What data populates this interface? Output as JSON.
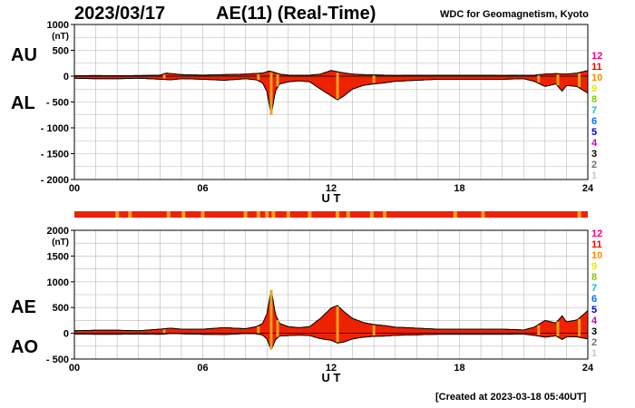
{
  "header": {
    "date": "2023/03/17",
    "title": "AE(11) (Real-Time)",
    "source": "WDC for Geomagnetism, Kyoto"
  },
  "footer": {
    "created": "[Created at 2023-03-18 05:40UT]"
  },
  "side_labels": {
    "top_upper": "AU",
    "top_lower": "AL",
    "bottom_upper": "AE",
    "bottom_lower": "AO"
  },
  "legend": [
    "12",
    "11",
    "10",
    "9",
    "8",
    "7",
    "6",
    "5",
    "4",
    "3",
    "2",
    "1"
  ],
  "colors": {
    "fill": "#ee2200",
    "station_band": "#f0a020",
    "grid": "#b8b8b8",
    "legend": [
      "#ff0080",
      "#ff0000",
      "#ff8c00",
      "#e8e800",
      "#7ccd00",
      "#00c8c8",
      "#0070ff",
      "#0000c8",
      "#c800c8",
      "#000000",
      "#707070",
      "#c8c8c8"
    ]
  },
  "chart_data": [
    {
      "type": "area",
      "panel": "AU/AL",
      "x_ticks": [
        "00",
        "06",
        "12",
        "18",
        "24"
      ],
      "xlabel": "U T",
      "ylabel_unit": "(nT)",
      "y_ticks": [
        "1000",
        "500",
        "0",
        "- 500",
        "- 1000",
        "- 1500",
        "- 2000"
      ],
      "ylim": [
        -2000,
        1000
      ],
      "xlim": [
        0,
        24
      ],
      "grid": true,
      "series": [
        {
          "name": "AU",
          "x": [
            0,
            1,
            2,
            3,
            4,
            4.3,
            5,
            6,
            7,
            8,
            8.8,
            9.1,
            9.3,
            9.6,
            10,
            10.5,
            11,
            11.5,
            12,
            12.5,
            13,
            13.5,
            14,
            14.5,
            15,
            16,
            17,
            18,
            19,
            20,
            21,
            21.5,
            22,
            22.5,
            23,
            23.5,
            24
          ],
          "y": [
            10,
            12,
            10,
            12,
            20,
            60,
            30,
            20,
            30,
            40,
            60,
            100,
            80,
            40,
            20,
            20,
            20,
            40,
            110,
            70,
            40,
            30,
            25,
            20,
            15,
            20,
            20,
            20,
            20,
            15,
            20,
            20,
            40,
            50,
            40,
            60,
            110
          ]
        },
        {
          "name": "AL",
          "x": [
            0,
            1,
            2,
            3,
            4,
            4.5,
            5,
            6,
            7,
            8,
            8.5,
            8.8,
            9.0,
            9.2,
            9.4,
            9.6,
            10,
            10.5,
            11,
            11.5,
            12,
            12.3,
            12.6,
            13,
            13.5,
            14,
            14.5,
            15,
            16,
            17,
            18,
            19,
            20,
            21,
            21.5,
            22,
            22.5,
            22.8,
            23,
            23.5,
            24
          ],
          "y": [
            -40,
            -50,
            -50,
            -40,
            -60,
            -70,
            -50,
            -60,
            -80,
            -50,
            -70,
            -130,
            -300,
            -760,
            -280,
            -150,
            -110,
            -90,
            -110,
            -250,
            -380,
            -460,
            -380,
            -250,
            -180,
            -150,
            -130,
            -100,
            -80,
            -60,
            -60,
            -60,
            -60,
            -50,
            -100,
            -200,
            -150,
            -290,
            -180,
            -200,
            -330
          ]
        }
      ]
    },
    {
      "type": "area",
      "panel": "AE/AO",
      "x_ticks": [
        "00",
        "06",
        "12",
        "18",
        "24"
      ],
      "xlabel": "U T",
      "ylabel_unit": "(nT)",
      "y_ticks": [
        "2000",
        "1500",
        "1000",
        "500",
        "0",
        "- 500"
      ],
      "ylim": [
        -500,
        2000
      ],
      "xlim": [
        0,
        24
      ],
      "grid": true,
      "series": [
        {
          "name": "AE",
          "x": [
            0,
            1,
            2,
            3,
            4,
            4.5,
            5,
            6,
            7,
            8,
            8.5,
            8.8,
            9.0,
            9.2,
            9.4,
            9.6,
            10,
            10.5,
            11,
            11.5,
            12,
            12.3,
            12.6,
            13,
            13.5,
            14,
            14.5,
            15,
            16,
            17,
            18,
            19,
            20,
            21,
            21.5,
            22,
            22.5,
            22.8,
            23,
            23.5,
            24
          ],
          "y": [
            50,
            60,
            60,
            50,
            80,
            100,
            80,
            80,
            110,
            90,
            130,
            190,
            380,
            860,
            360,
            190,
            130,
            110,
            130,
            290,
            490,
            540,
            420,
            290,
            210,
            170,
            150,
            120,
            100,
            80,
            80,
            80,
            80,
            65,
            120,
            250,
            200,
            340,
            220,
            260,
            440
          ]
        },
        {
          "name": "AO",
          "x": [
            0,
            1,
            2,
            3,
            4,
            4.5,
            5,
            6,
            7,
            8,
            8.5,
            8.8,
            9.0,
            9.2,
            9.4,
            9.6,
            10,
            10.5,
            11,
            11.5,
            12,
            12.3,
            12.6,
            13,
            13.5,
            14,
            14.5,
            15,
            16,
            17,
            18,
            19,
            20,
            21,
            21.5,
            22,
            22.5,
            22.8,
            23,
            23.5,
            24
          ],
          "y": [
            -15,
            -19,
            -20,
            -14,
            -20,
            -5,
            -10,
            -20,
            -25,
            -5,
            -10,
            -35,
            -110,
            -330,
            -120,
            -55,
            -45,
            -35,
            -45,
            -105,
            -135,
            -190,
            -170,
            -110,
            -75,
            -60,
            -55,
            -40,
            -30,
            -20,
            -20,
            -20,
            -20,
            -17,
            -40,
            -75,
            -50,
            -120,
            -70,
            -70,
            -110
          ]
        }
      ]
    }
  ]
}
